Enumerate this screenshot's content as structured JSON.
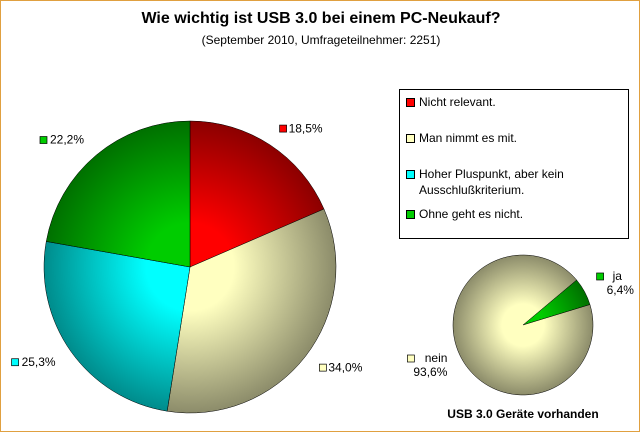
{
  "chart_data": [
    {
      "type": "pie",
      "title": "Wie wichtig ist USB 3.0 bei einem PC-Neukauf?",
      "subtitle": "(September 2010, Umfrageteilnehmer: 2251)",
      "categories": [
        "Nicht relevant.",
        "Man nimmt es mit.",
        "Hoher Pluspunkt, aber kein Ausschlußkriterium.",
        "Ohne geht es nicht."
      ],
      "values": [
        18.5,
        34.0,
        25.3,
        22.2
      ],
      "value_labels": [
        "18,5%",
        "34,0%",
        "25,3%",
        "22,2%"
      ],
      "colors": [
        "#ff0000",
        "#ffffc0",
        "#00ffff",
        "#00cc00"
      ],
      "legend": "right"
    },
    {
      "type": "pie",
      "title": "USB 3.0 Geräte vorhanden",
      "categories": [
        "ja",
        "nein"
      ],
      "values": [
        6.4,
        93.6
      ],
      "value_labels": [
        "6,4%",
        "93,6%"
      ],
      "colors": [
        "#00cc00",
        "#ffffc0"
      ]
    }
  ]
}
